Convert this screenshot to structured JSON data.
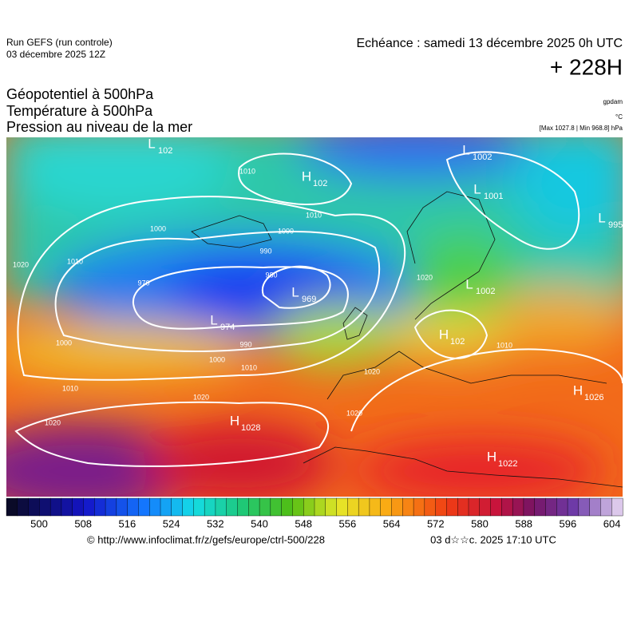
{
  "header": {
    "run": "Run GEFS (run controle)",
    "run_date": "03 décembre 2025 12Z",
    "valid": "Echéance : samedi 13 décembre 2025 0h UTC",
    "lead": "+ 228H"
  },
  "titles": [
    "Géopotentiel à 500hPa",
    "Température à 500hPa",
    "Pression au niveau de la mer"
  ],
  "units": {
    "geopotential": "gpdam",
    "temperature": "°C",
    "pressure": "[Max 1027.8 | Min 968.8] hPa"
  },
  "centers": [
    {
      "type": "L",
      "value": "102"
    },
    {
      "type": "H",
      "value": "102"
    },
    {
      "type": "L",
      "value": "1002"
    },
    {
      "type": "L",
      "value": "1001"
    },
    {
      "type": "L",
      "value": "995"
    },
    {
      "type": "L",
      "value": "969"
    },
    {
      "type": "L",
      "value": "974"
    },
    {
      "type": "L",
      "value": "1002"
    },
    {
      "type": "H",
      "value": "102"
    },
    {
      "type": "H",
      "value": "1026"
    },
    {
      "type": "H",
      "value": "1028"
    },
    {
      "type": "H",
      "value": "1022"
    }
  ],
  "contour_labels": [
    "1010",
    "1010",
    "1000",
    "990",
    "980",
    "1000",
    "1010",
    "1020",
    "970",
    "1000",
    "990",
    "1000",
    "1010",
    "1010",
    "1020",
    "1020",
    "1020",
    "1020",
    "1010",
    "1020"
  ],
  "colorbar": {
    "labels": [
      500,
      508,
      516,
      524,
      532,
      540,
      548,
      556,
      564,
      572,
      580,
      588,
      596,
      604
    ]
  },
  "footer": {
    "url": "© http://www.infoclimat.fr/z/gefs/europe/ctrl-500/228",
    "generated": "03 d☆☆c. 2025 17:10 UTC"
  }
}
